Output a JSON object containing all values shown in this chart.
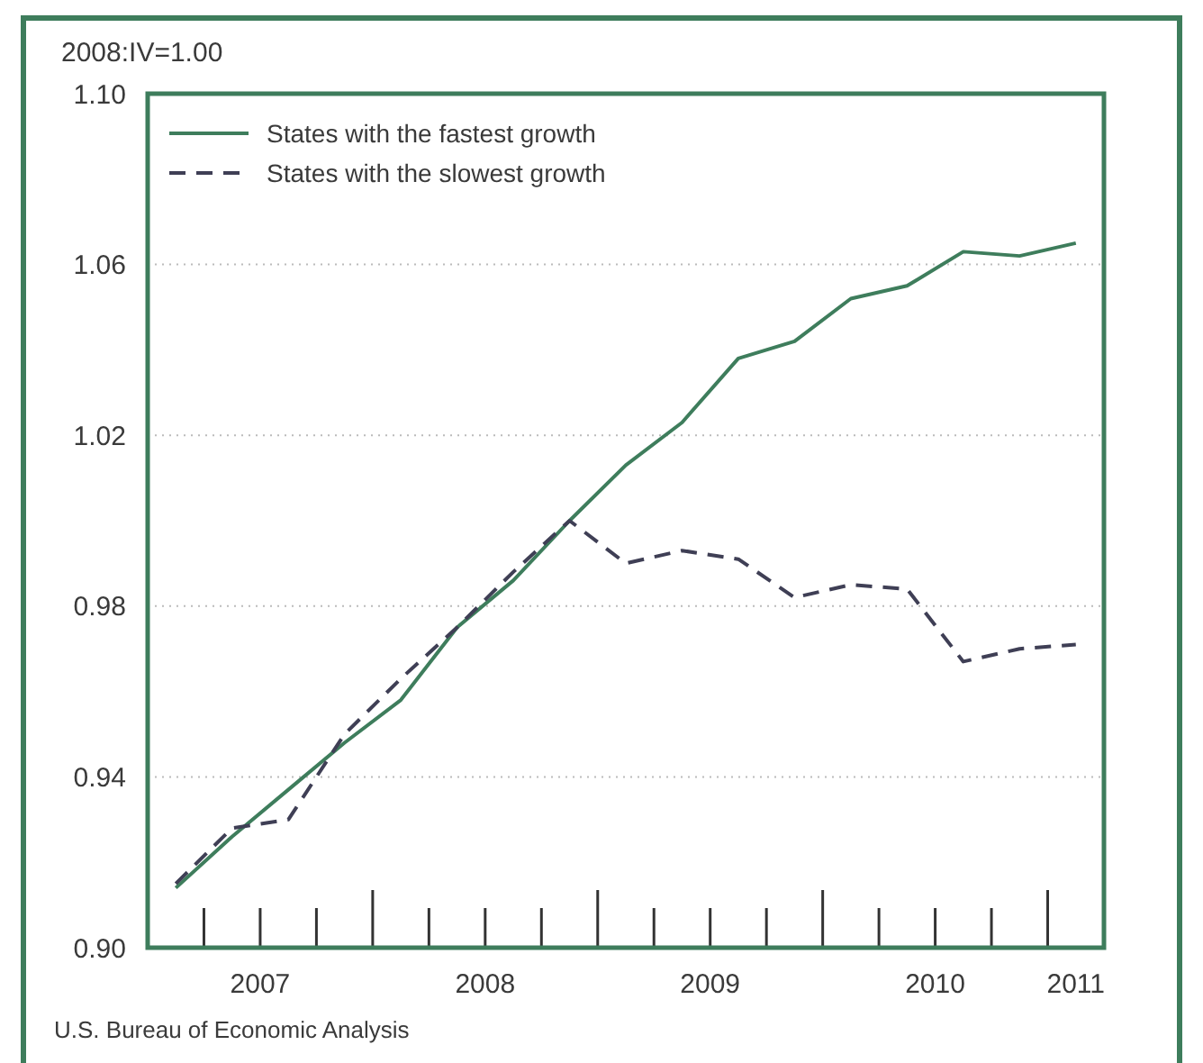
{
  "chart_data": {
    "type": "line",
    "ylabel": "2008:IV=1.00",
    "x": [
      2007.125,
      2007.375,
      2007.625,
      2007.875,
      2008.125,
      2008.375,
      2008.625,
      2008.875,
      2009.125,
      2009.375,
      2009.625,
      2009.875,
      2010.125,
      2010.375,
      2010.625,
      2010.875,
      2011.125
    ],
    "series": [
      {
        "name": "States with the fastest growth",
        "color": "#3e7d5c",
        "line_style": "solid",
        "values": [
          0.914,
          0.926,
          0.937,
          0.948,
          0.958,
          0.975,
          0.986,
          1.0,
          1.013,
          1.023,
          1.038,
          1.042,
          1.052,
          1.055,
          1.063,
          1.062,
          1.065
        ]
      },
      {
        "name": "States with the slowest growth",
        "color": "#3f3f55",
        "line_style": "dashed",
        "values": [
          0.915,
          0.928,
          0.93,
          0.95,
          0.963,
          0.975,
          0.988,
          1.0,
          0.99,
          0.993,
          0.991,
          0.982,
          0.985,
          0.984,
          0.967,
          0.97,
          0.971
        ]
      }
    ],
    "xlim": [
      2007,
      2011.25
    ],
    "xticks": [
      {
        "value": 2007.5,
        "label": "2007"
      },
      {
        "value": 2008.5,
        "label": "2008"
      },
      {
        "value": 2009.5,
        "label": "2009"
      },
      {
        "value": 2010.5,
        "label": "2010"
      },
      {
        "value": 2011.125,
        "label": "2011"
      }
    ],
    "ylim": [
      0.9,
      1.1
    ],
    "yticks": [
      {
        "value": 0.9,
        "label": "0.90"
      },
      {
        "value": 0.94,
        "label": "0.94"
      },
      {
        "value": 0.98,
        "label": "0.98"
      },
      {
        "value": 1.02,
        "label": "1.02"
      },
      {
        "value": 1.06,
        "label": "1.06"
      },
      {
        "value": 1.1,
        "label": "1.10"
      }
    ],
    "grid": "y",
    "legend": "top left",
    "annotations": [
      "U.S. Bureau of Economic Analysis"
    ]
  }
}
